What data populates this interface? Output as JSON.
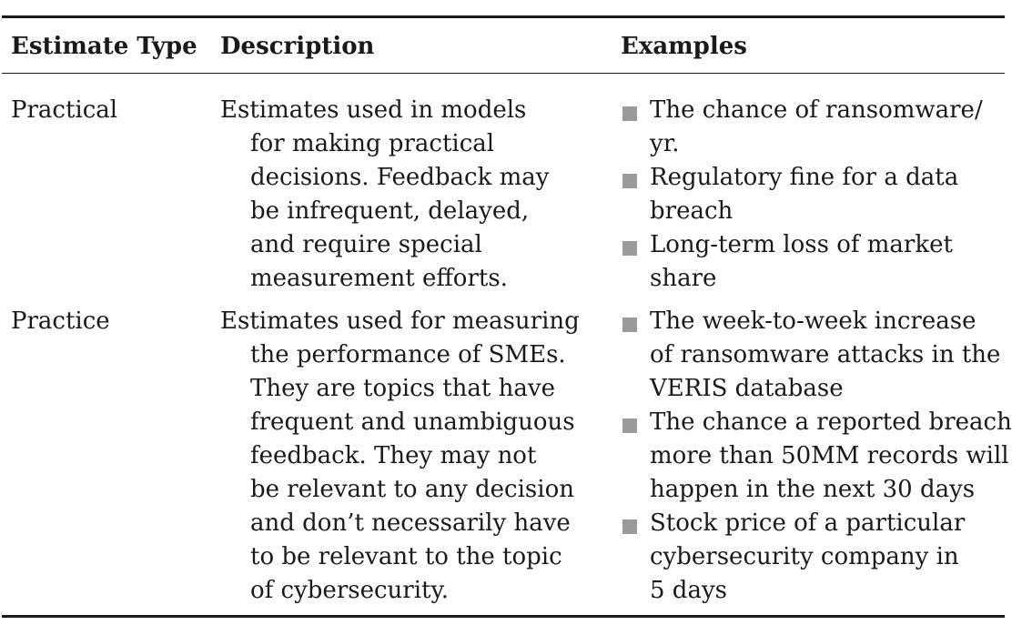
{
  "table": {
    "headers": {
      "type": "Estimate Type",
      "description": "Description",
      "examples": "Examples"
    },
    "rows": [
      {
        "type": "Practical",
        "description_lines": [
          "Estimates used in models",
          "for making practical",
          "decisions. Feedback may",
          "be infrequent, delayed,",
          "and require special",
          "measurement efforts."
        ],
        "examples": [
          [
            "The chance of ransomware/",
            "yr."
          ],
          [
            "Regulatory fine for a data",
            "breach"
          ],
          [
            "Long-term loss of market",
            "share"
          ]
        ]
      },
      {
        "type": "Practice",
        "description_lines": [
          "Estimates used for measuring",
          "the performance of SMEs.",
          "They are topics that have",
          "frequent and unambiguous",
          "feedback. They may not",
          "be relevant to any decision",
          "and don’t necessarily have",
          "to be relevant to the topic",
          "of cybersecurity."
        ],
        "examples": [
          [
            "The week-to-week increase",
            "of ransomware attacks in the",
            "VERIS database"
          ],
          [
            "The chance a reported breach",
            "more than 50MM records will",
            "happen in the next 30 days"
          ],
          [
            "Stock price of a particular",
            "cybersecurity company in",
            "5 days"
          ]
        ]
      }
    ]
  }
}
